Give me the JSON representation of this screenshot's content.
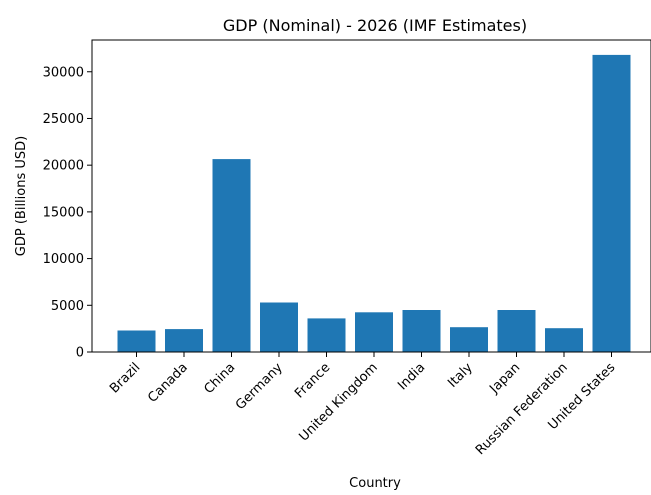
{
  "chart_data": {
    "type": "bar",
    "title": "GDP (Nominal) - 2026 (IMF Estimates)",
    "xlabel": "Country",
    "ylabel": "GDP (Billions USD)",
    "categories": [
      "Brazil",
      "Canada",
      "China",
      "Germany",
      "France",
      "United Kingdom",
      "India",
      "Italy",
      "Japan",
      "Russian Federation",
      "United States"
    ],
    "values": [
      2300,
      2450,
      20650,
      5300,
      3600,
      4250,
      4500,
      2650,
      4500,
      2550,
      31800
    ],
    "yticks": [
      0,
      5000,
      10000,
      15000,
      20000,
      25000,
      30000
    ],
    "ylim": [
      0,
      33400
    ],
    "bar_color": "#1f77b4",
    "grid": false,
    "legend": "none"
  }
}
